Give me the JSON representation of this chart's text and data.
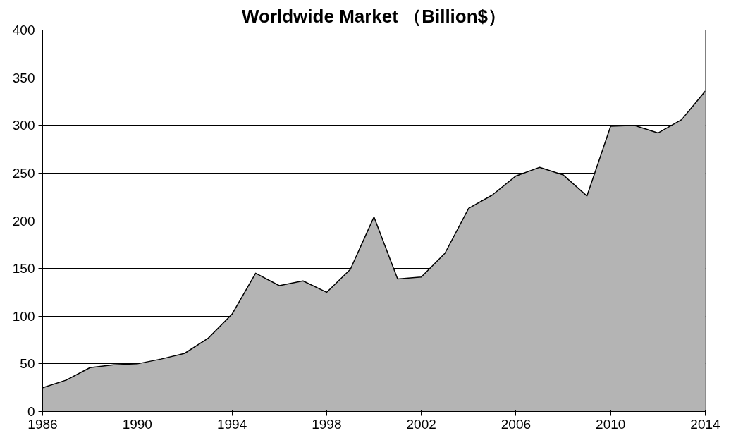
{
  "chart_data": {
    "type": "area",
    "title": "Worldwide Market （Billion$）",
    "x": [
      1986,
      1987,
      1988,
      1989,
      1990,
      1991,
      1992,
      1993,
      1994,
      1995,
      1996,
      1997,
      1998,
      1999,
      2000,
      2001,
      2002,
      2003,
      2004,
      2005,
      2006,
      2007,
      2008,
      2009,
      2010,
      2011,
      2012,
      2013,
      2014
    ],
    "series": [
      {
        "color": "#b4b4b4",
        "values": [
          25,
          33,
          46,
          49,
          50,
          55,
          61,
          77,
          102,
          145,
          132,
          137,
          125,
          149,
          204,
          139,
          141,
          166,
          213,
          227,
          247,
          256,
          248,
          226,
          299,
          300,
          292,
          306,
          336
        ]
      }
    ],
    "xlim": [
      1986,
      2014
    ],
    "xticks": [
      1986,
      1990,
      1994,
      1998,
      2002,
      2006,
      2010,
      2014
    ],
    "ylim": [
      0,
      400
    ],
    "yticks": [
      0,
      50,
      100,
      150,
      200,
      250,
      300,
      350,
      400
    ],
    "grid": "y"
  }
}
